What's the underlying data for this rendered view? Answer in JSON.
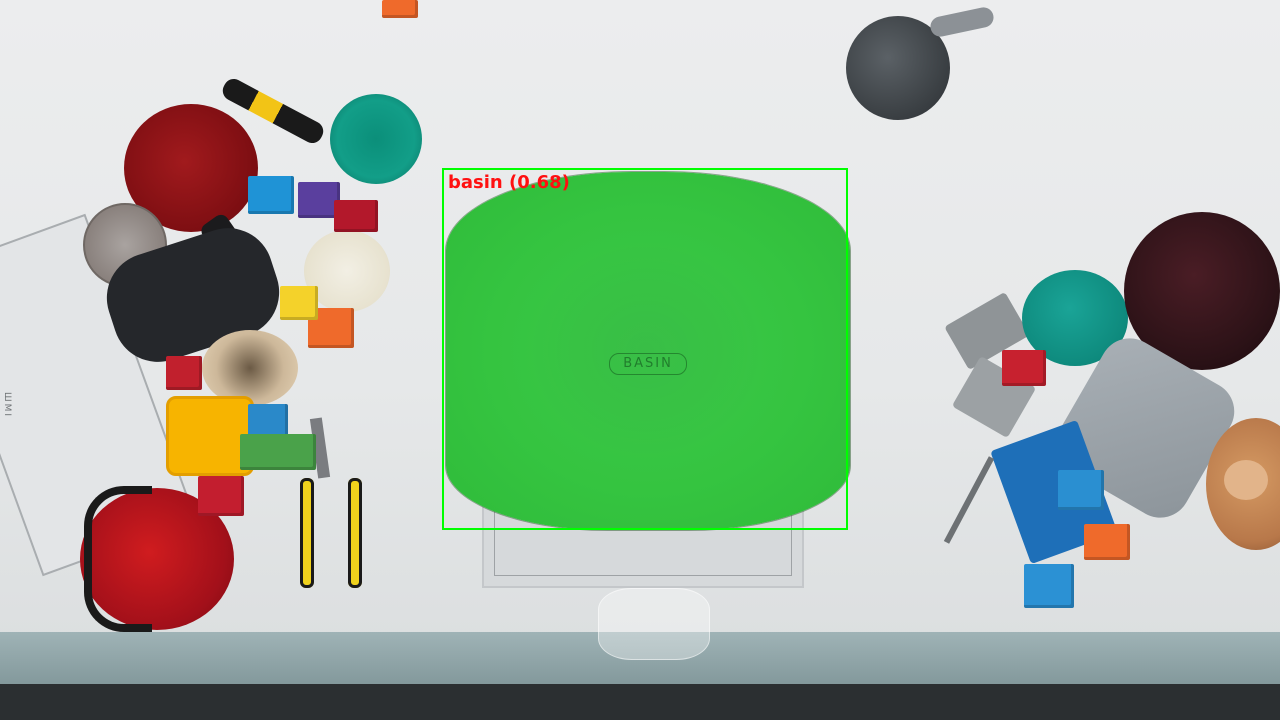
{
  "detection": {
    "label": "basin (0.68)",
    "box_color": "#00ff00",
    "label_color": "#ff1010",
    "mask_color": "#35c440"
  },
  "basin_emboss_text": "BASIN",
  "notebook_text": "ШМI"
}
